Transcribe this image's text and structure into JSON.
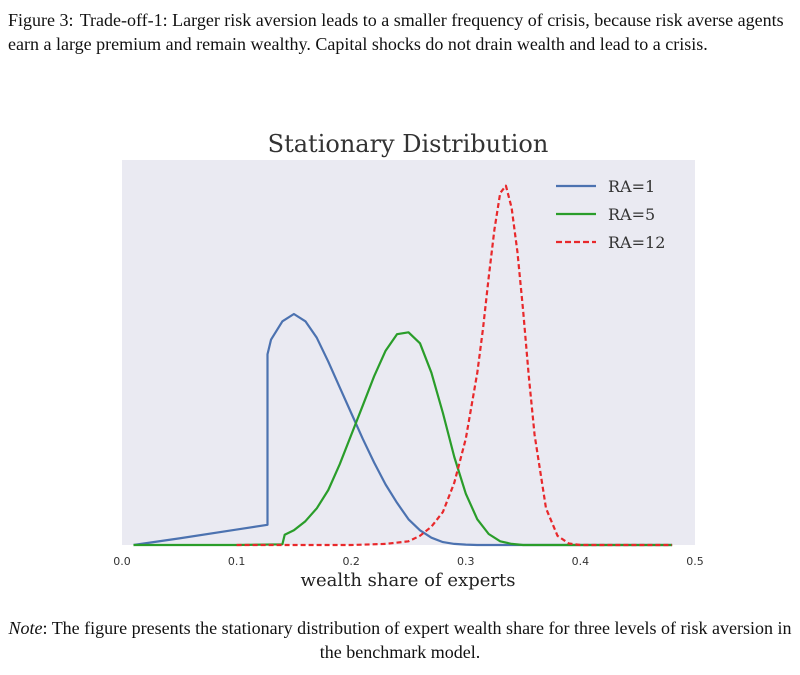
{
  "caption": {
    "label": "Figure 3:",
    "text": "Trade-off-1: Larger risk aversion leads to a smaller frequency of crisis, because risk averse agents earn a large premium and remain wealthy. Capital shocks do not drain wealth and lead to a crisis."
  },
  "note": {
    "label": "Note",
    "text": ": The figure presents the stationary distribution of expert wealth share for three levels of risk aversion in the benchmark model."
  },
  "chart_data": {
    "type": "line",
    "title": "Stationary Distribution",
    "xlabel": "wealth share of experts",
    "ylabel": "",
    "xlim": [
      0.0,
      0.5
    ],
    "ylim": [
      0,
      1.05
    ],
    "xticks": [
      "0.0",
      "0.1",
      "0.2",
      "0.3",
      "0.4",
      "0.5"
    ],
    "grid": false,
    "legend": "top-right",
    "background": "#eaeaf2",
    "series": [
      {
        "name": "RA=1",
        "color": "#4c72b0",
        "dash": "solid",
        "x": [
          0.01,
          0.05,
          0.1,
          0.127,
          0.127,
          0.13,
          0.14,
          0.15,
          0.16,
          0.17,
          0.18,
          0.19,
          0.2,
          0.21,
          0.22,
          0.23,
          0.24,
          0.25,
          0.26,
          0.27,
          0.28,
          0.29,
          0.3,
          0.31,
          0.32,
          0.33,
          0.35,
          0.4,
          0.48
        ],
        "y": [
          0.0,
          0.018,
          0.042,
          0.055,
          0.52,
          0.56,
          0.61,
          0.63,
          0.61,
          0.565,
          0.5,
          0.43,
          0.36,
          0.29,
          0.225,
          0.165,
          0.115,
          0.07,
          0.04,
          0.02,
          0.008,
          0.003,
          0.001,
          0.0,
          0.0,
          0.0,
          0.0,
          0.0,
          0.0
        ]
      },
      {
        "name": "RA=5",
        "color": "#2a9d2a",
        "dash": "solid",
        "x": [
          0.01,
          0.1,
          0.14,
          0.142,
          0.15,
          0.16,
          0.17,
          0.18,
          0.19,
          0.2,
          0.21,
          0.22,
          0.23,
          0.24,
          0.25,
          0.26,
          0.27,
          0.28,
          0.29,
          0.3,
          0.31,
          0.32,
          0.33,
          0.34,
          0.35,
          0.38,
          0.48
        ],
        "y": [
          0.0,
          0.0,
          0.002,
          0.028,
          0.04,
          0.065,
          0.1,
          0.15,
          0.22,
          0.3,
          0.38,
          0.46,
          0.53,
          0.575,
          0.58,
          0.55,
          0.47,
          0.36,
          0.24,
          0.14,
          0.07,
          0.03,
          0.01,
          0.003,
          0.0,
          0.0,
          0.0
        ]
      },
      {
        "name": "RA=12",
        "color": "#e8282b",
        "dash": "dashed",
        "x": [
          0.1,
          0.2,
          0.23,
          0.25,
          0.26,
          0.27,
          0.28,
          0.29,
          0.3,
          0.31,
          0.315,
          0.32,
          0.325,
          0.33,
          0.335,
          0.34,
          0.345,
          0.35,
          0.355,
          0.36,
          0.37,
          0.38,
          0.39,
          0.4,
          0.48
        ],
        "y": [
          0.0,
          0.0,
          0.003,
          0.01,
          0.025,
          0.05,
          0.09,
          0.17,
          0.29,
          0.47,
          0.59,
          0.73,
          0.86,
          0.96,
          0.98,
          0.92,
          0.8,
          0.64,
          0.46,
          0.3,
          0.1,
          0.025,
          0.004,
          0.0,
          0.0
        ]
      }
    ]
  }
}
